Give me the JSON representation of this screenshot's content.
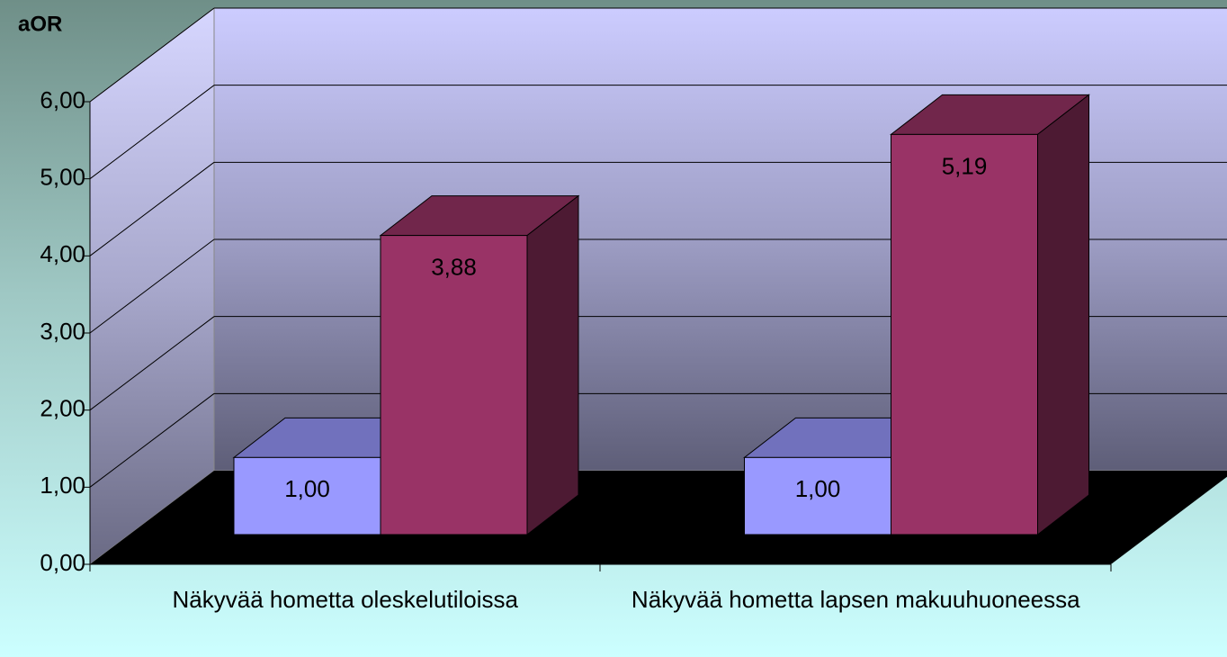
{
  "chart_data": {
    "type": "bar3d",
    "ylabel": "aOR",
    "categories": [
      "Näkyvää hometta oleskelutiloissa",
      "Näkyvää hometta lapsen makuuhuoneessa"
    ],
    "series": [
      {
        "color": "#9999ff",
        "values": [
          1.0,
          1.0
        ],
        "value_labels": [
          "1,00",
          "1,00"
        ]
      },
      {
        "color": "#993366",
        "values": [
          3.88,
          5.19
        ],
        "value_labels": [
          "3,88",
          "5,19"
        ]
      }
    ],
    "ylim": [
      0,
      6
    ],
    "yticks": [
      {
        "value": 0,
        "label": "0,00"
      },
      {
        "value": 1,
        "label": "1,00"
      },
      {
        "value": 2,
        "label": "2,00"
      },
      {
        "value": 3,
        "label": "3,00"
      },
      {
        "value": 4,
        "label": "4,00"
      },
      {
        "value": 5,
        "label": "5,00"
      },
      {
        "value": 6,
        "label": "6,00"
      }
    ],
    "grid": true
  }
}
